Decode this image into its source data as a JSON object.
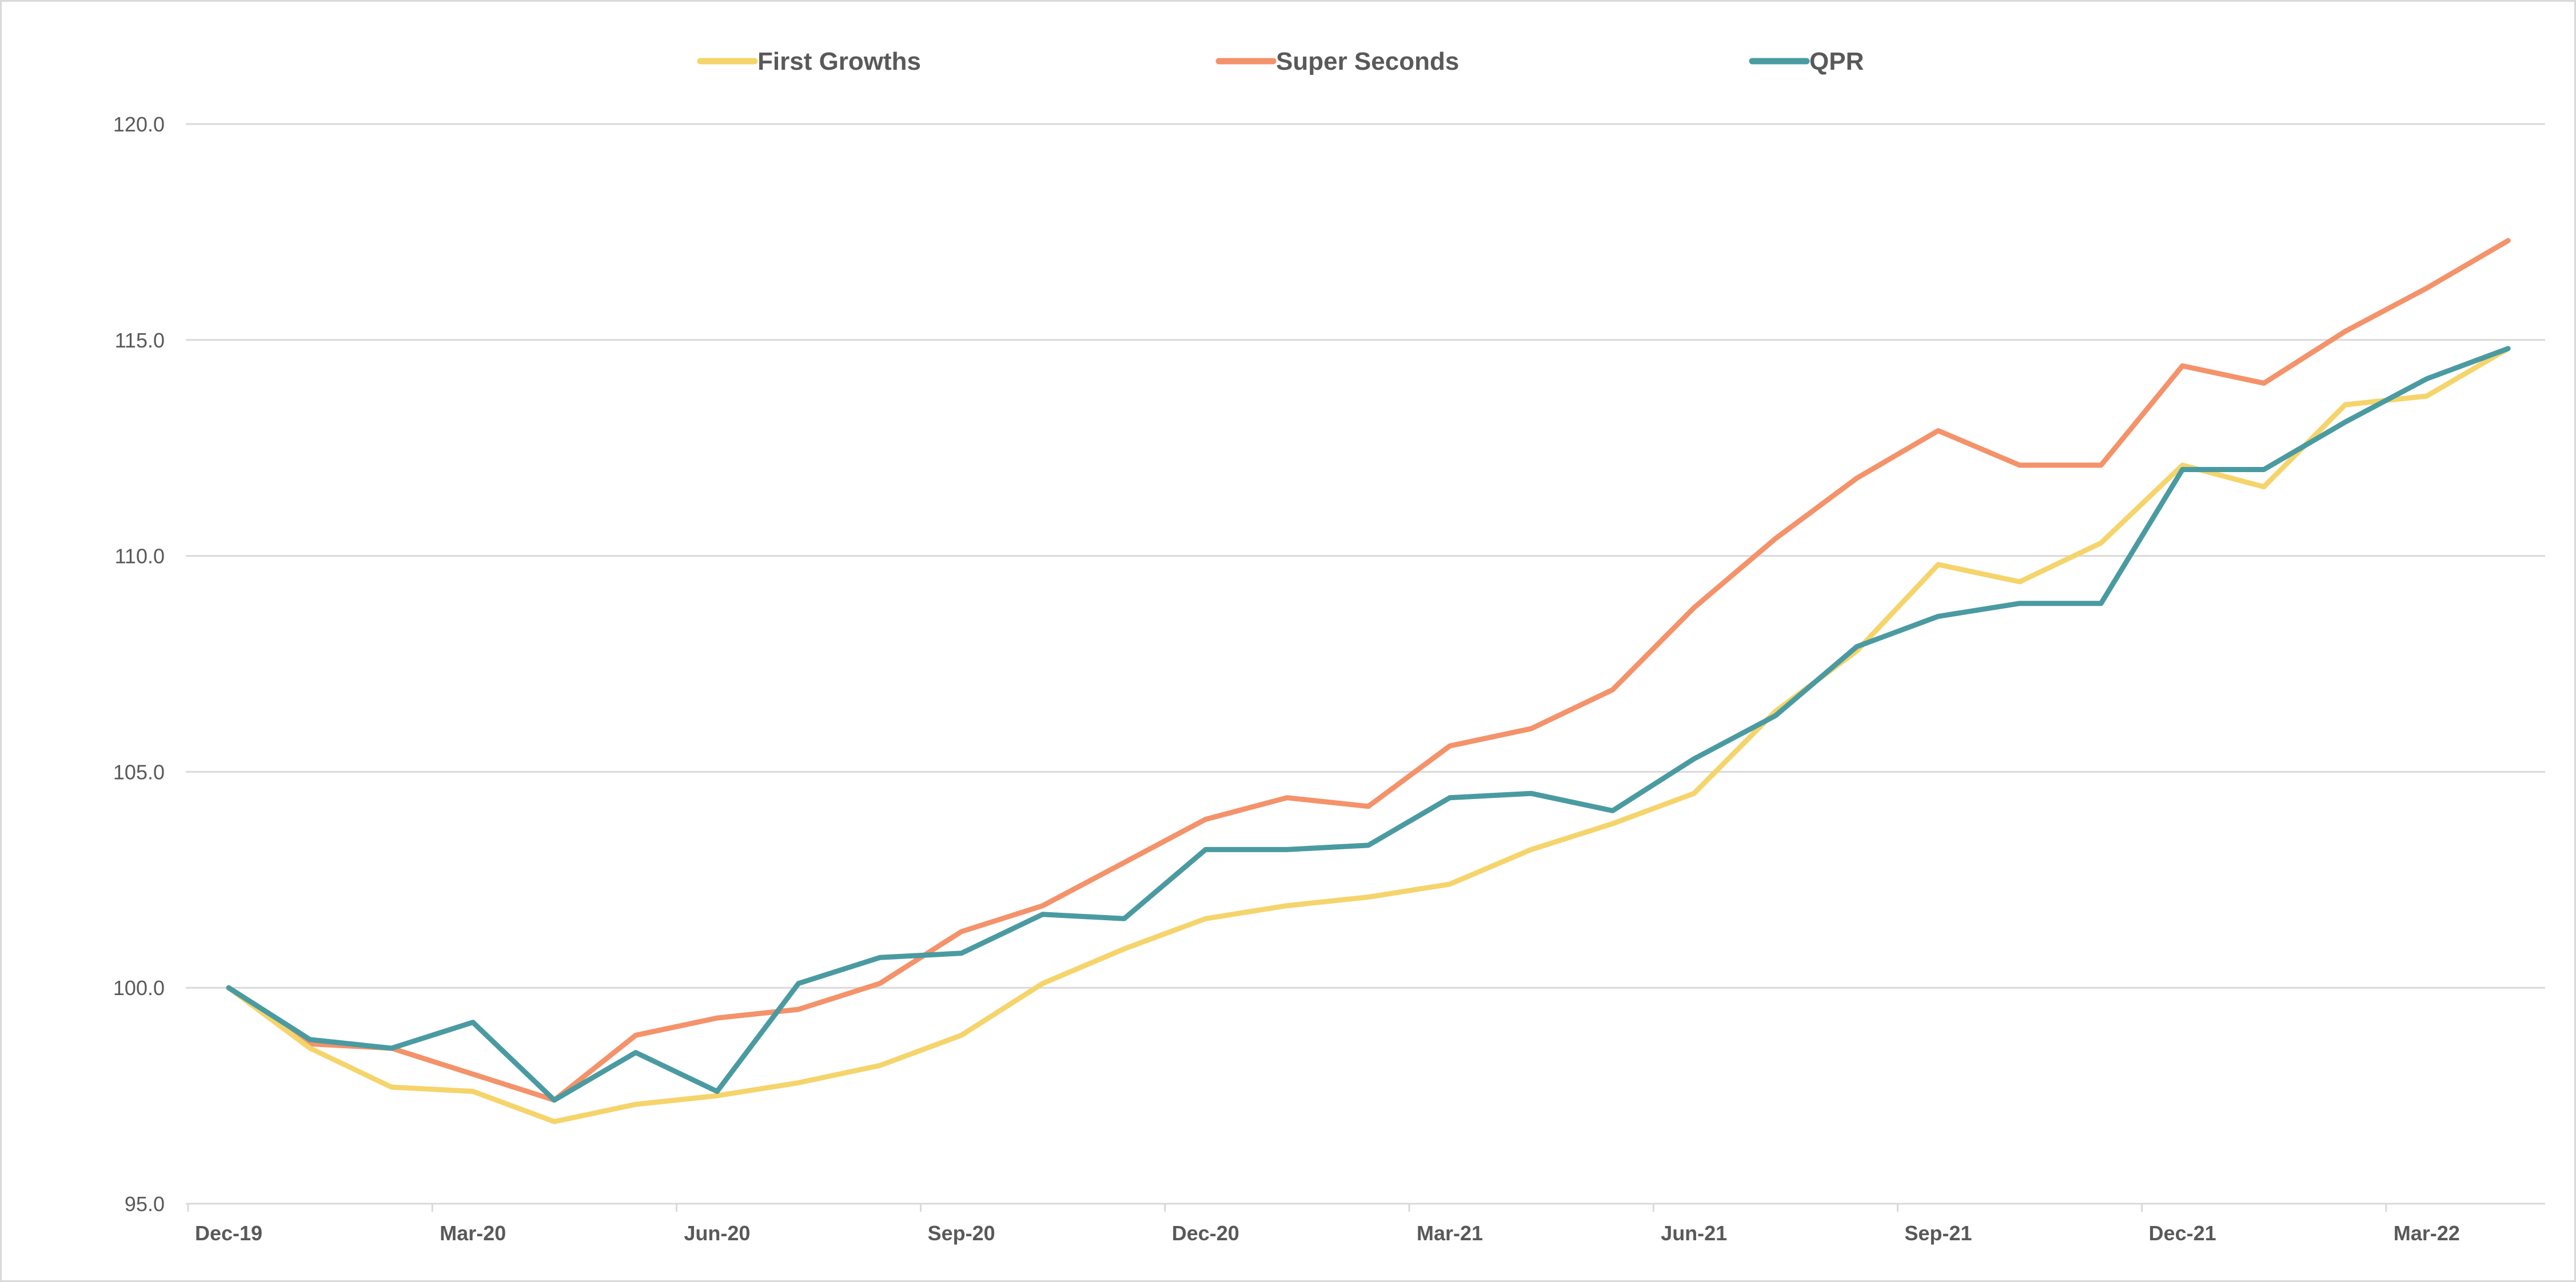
{
  "chart_data": {
    "type": "line",
    "title": "",
    "xlabel": "",
    "ylabel": "",
    "ylim": [
      95,
      120
    ],
    "y_ticks": [
      "95.0",
      "100.0",
      "105.0",
      "110.0",
      "115.0",
      "120.0"
    ],
    "y_tick_values": [
      95,
      100,
      105,
      110,
      115,
      120
    ],
    "x_tick_labels": [
      "Dec-19",
      "Mar-20",
      "Jun-20",
      "Sep-20",
      "Dec-20",
      "Mar-21",
      "Jun-21",
      "Sep-21",
      "Dec-21",
      "Mar-22"
    ],
    "x_tick_indices": [
      0,
      3,
      6,
      9,
      12,
      15,
      18,
      21,
      24,
      27
    ],
    "n_points": 29,
    "grid": "horizontal",
    "legend_position": "top",
    "series": [
      {
        "name": "First Growths",
        "color": "#f5d46b",
        "values": [
          100.0,
          98.6,
          97.7,
          97.6,
          96.9,
          97.3,
          97.5,
          97.8,
          98.2,
          98.9,
          100.1,
          100.9,
          101.6,
          101.9,
          102.1,
          102.4,
          103.2,
          103.8,
          104.5,
          106.4,
          107.8,
          109.8,
          109.4,
          110.3,
          112.1,
          111.6,
          113.5,
          113.7,
          114.8
        ]
      },
      {
        "name": "Super Seconds",
        "color": "#f4926a",
        "values": [
          100.0,
          98.7,
          98.6,
          98.0,
          97.4,
          98.9,
          99.3,
          99.5,
          100.1,
          101.3,
          101.9,
          102.9,
          103.9,
          104.4,
          104.2,
          105.6,
          106.0,
          106.9,
          108.8,
          110.4,
          111.8,
          112.9,
          112.1,
          112.1,
          114.4,
          114.0,
          115.2,
          116.2,
          117.3
        ]
      },
      {
        "name": "QPR",
        "color": "#4a9ba1",
        "values": [
          100.0,
          98.8,
          98.6,
          99.2,
          97.4,
          98.5,
          97.6,
          100.1,
          100.7,
          100.8,
          101.7,
          101.6,
          103.2,
          103.2,
          103.3,
          104.4,
          104.5,
          104.1,
          105.3,
          106.3,
          107.9,
          108.6,
          108.9,
          108.9,
          112.0,
          112.0,
          113.1,
          114.1,
          114.8
        ]
      }
    ]
  }
}
